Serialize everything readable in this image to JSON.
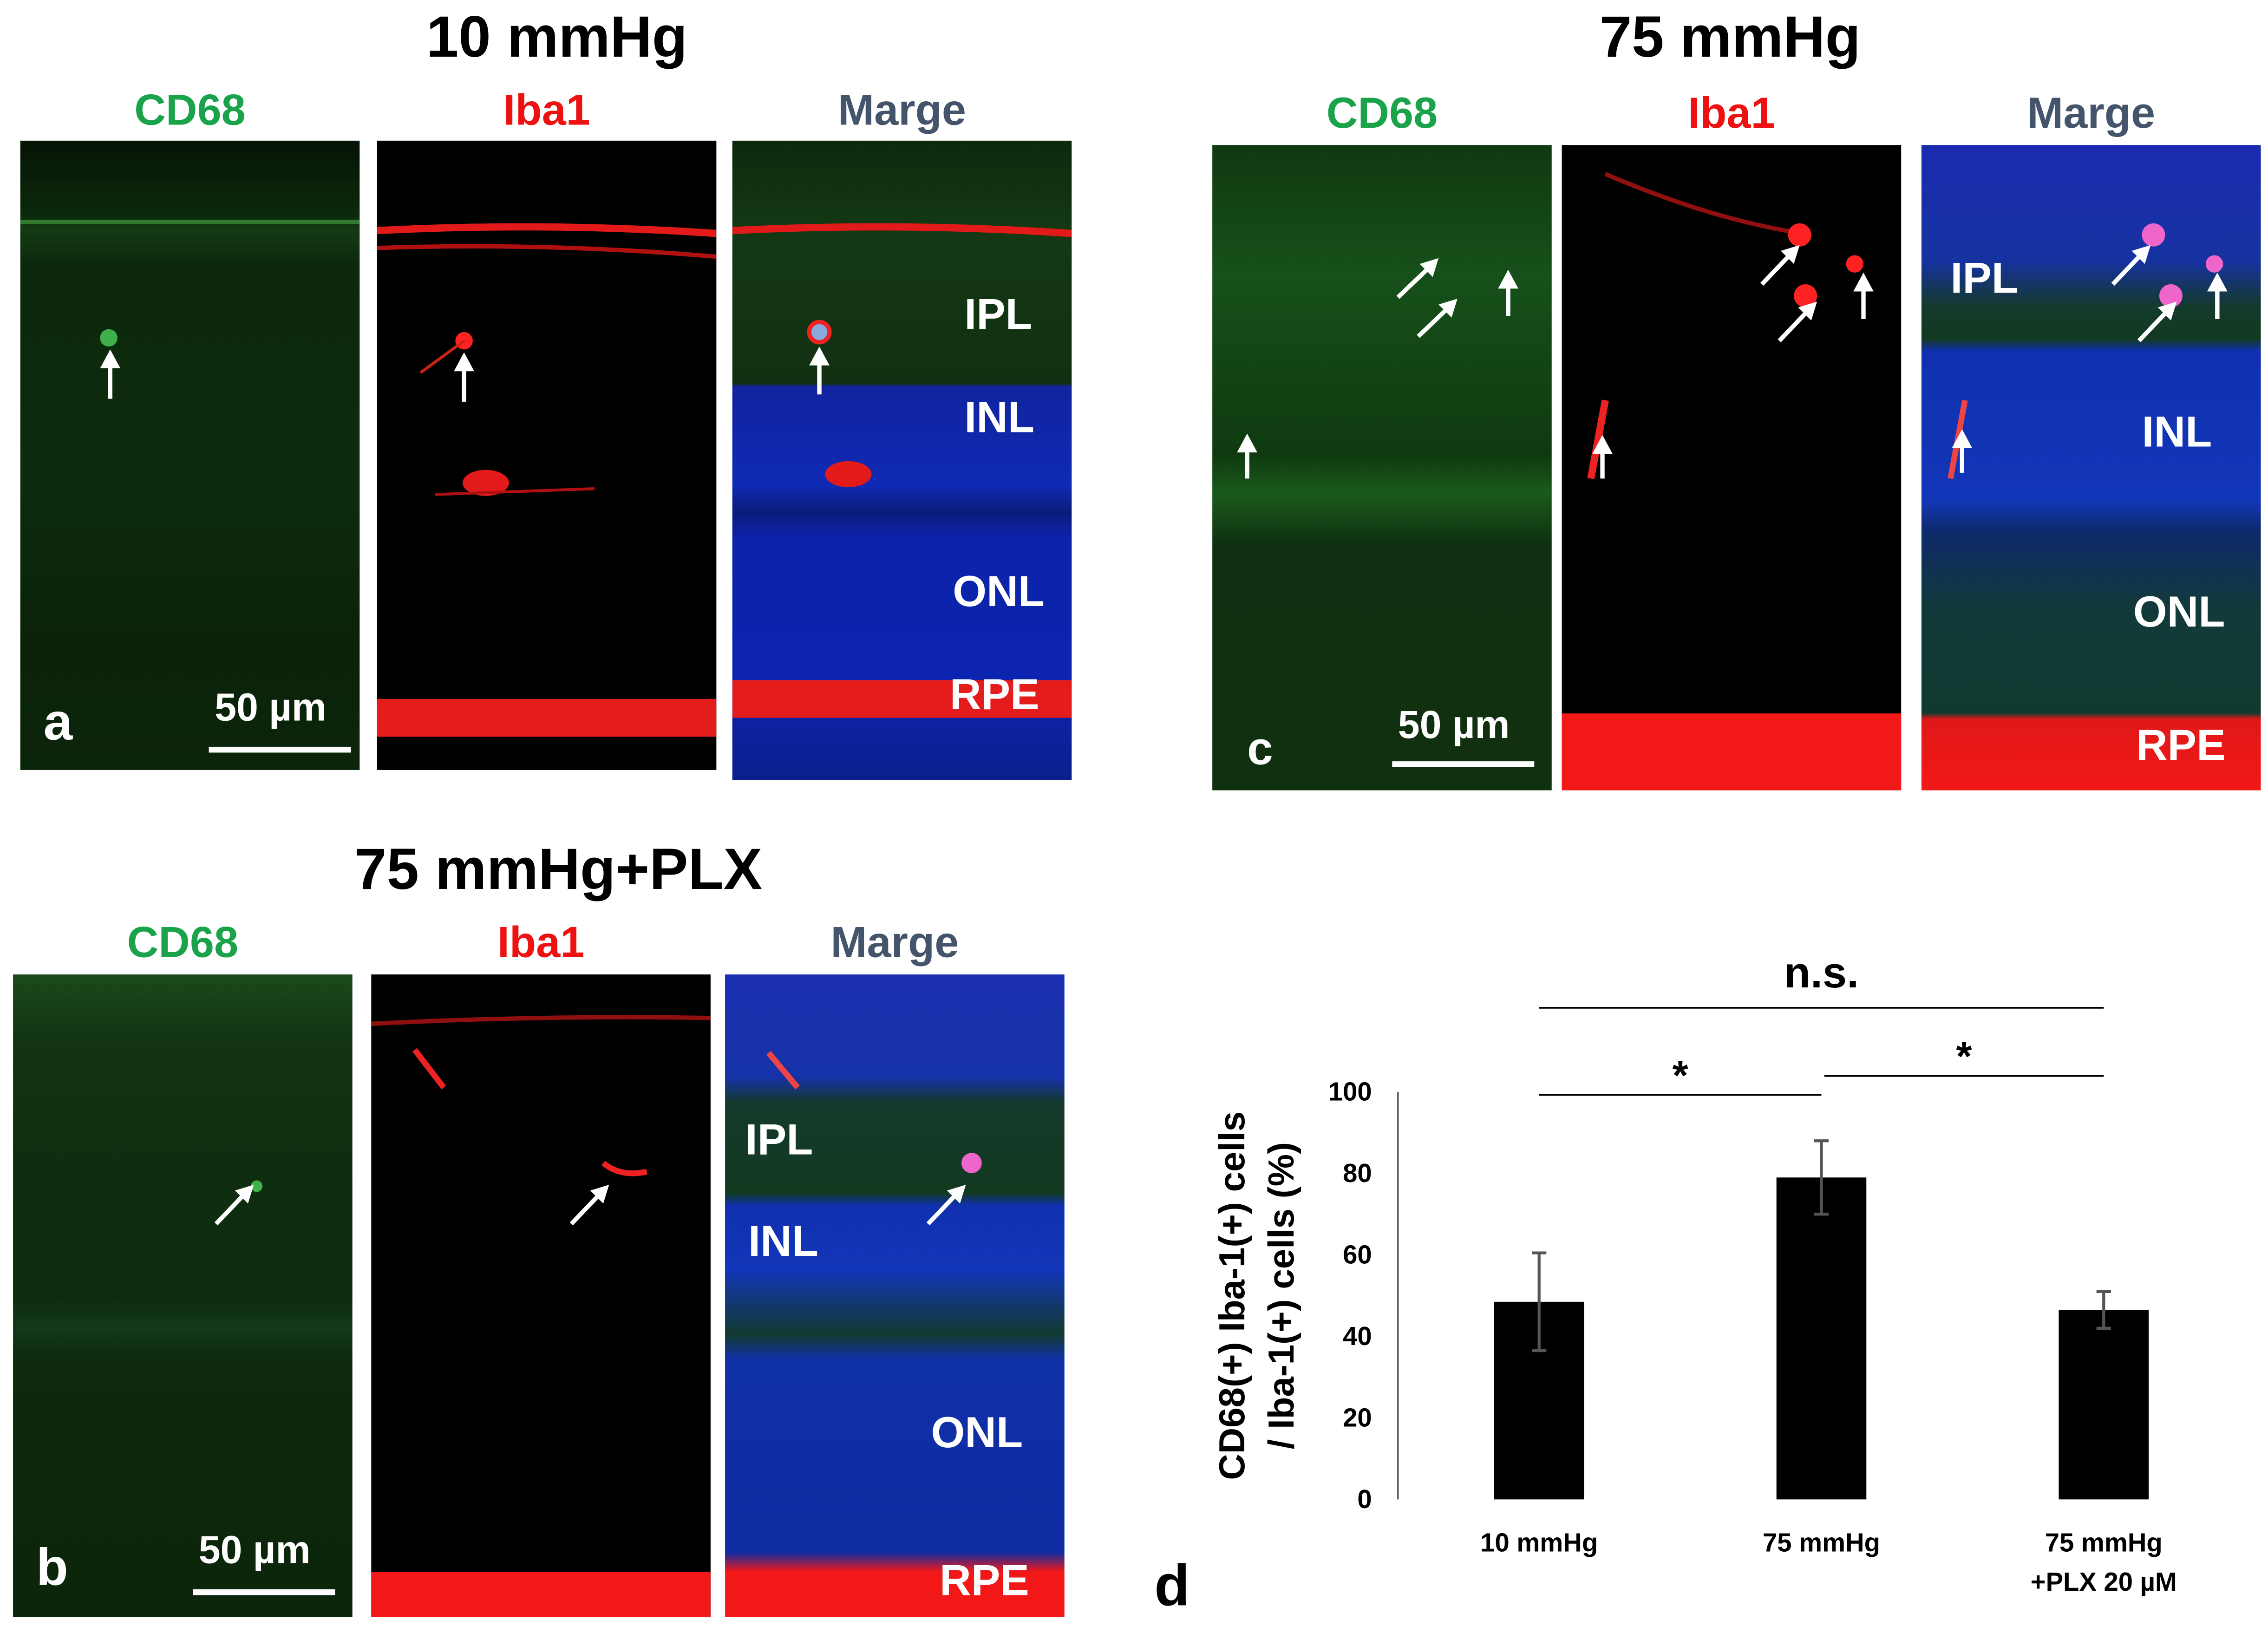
{
  "figure": {
    "panel_a": {
      "title": "10 mmHg",
      "channels": [
        "CD68",
        "Iba1",
        "Marge"
      ],
      "layers": [
        "IPL",
        "INL",
        "ONL",
        "RPE"
      ],
      "scale": "50 µm",
      "letter": "a"
    },
    "panel_b": {
      "title": "75 mmHg+PLX",
      "channels": [
        "CD68",
        "Iba1",
        "Marge"
      ],
      "layers": [
        "IPL",
        "INL",
        "ONL",
        "RPE"
      ],
      "scale": "50 µm",
      "letter": "b"
    },
    "panel_c": {
      "title": "75 mmHg",
      "channels": [
        "CD68",
        "Iba1",
        "Marge"
      ],
      "layers": [
        "IPL",
        "INL",
        "ONL",
        "RPE"
      ],
      "scale": "50 µm",
      "letter": "c"
    },
    "panel_d_letter": "d",
    "colors": {
      "cd68": "#1aa34a",
      "iba1": "#ee1111",
      "merge": "#44546a",
      "bar": "#000000"
    }
  },
  "chart_data": {
    "type": "bar",
    "categories": [
      "10 mmHg",
      "75 mmHg",
      "75 mmHg\n+PLX 20 µM"
    ],
    "values": [
      48.5,
      79,
      46.5
    ],
    "errors": [
      12,
      9,
      4.5
    ],
    "ylabel": "CD68(+) Iba-1(+) cells / Iba-1(+) cells (%)",
    "ylabel_lines": [
      "CD68(+) Iba-1(+) cells",
      "/ Iba-1(+) cells (%)"
    ],
    "ylim": [
      0,
      100
    ],
    "yticks": [
      0,
      20,
      40,
      60,
      80,
      100
    ],
    "grid": false,
    "significance": [
      {
        "pair": [
          0,
          1
        ],
        "label": "*"
      },
      {
        "pair": [
          1,
          2
        ],
        "label": "*"
      },
      {
        "pair": [
          0,
          2
        ],
        "label": "n.s."
      }
    ]
  }
}
